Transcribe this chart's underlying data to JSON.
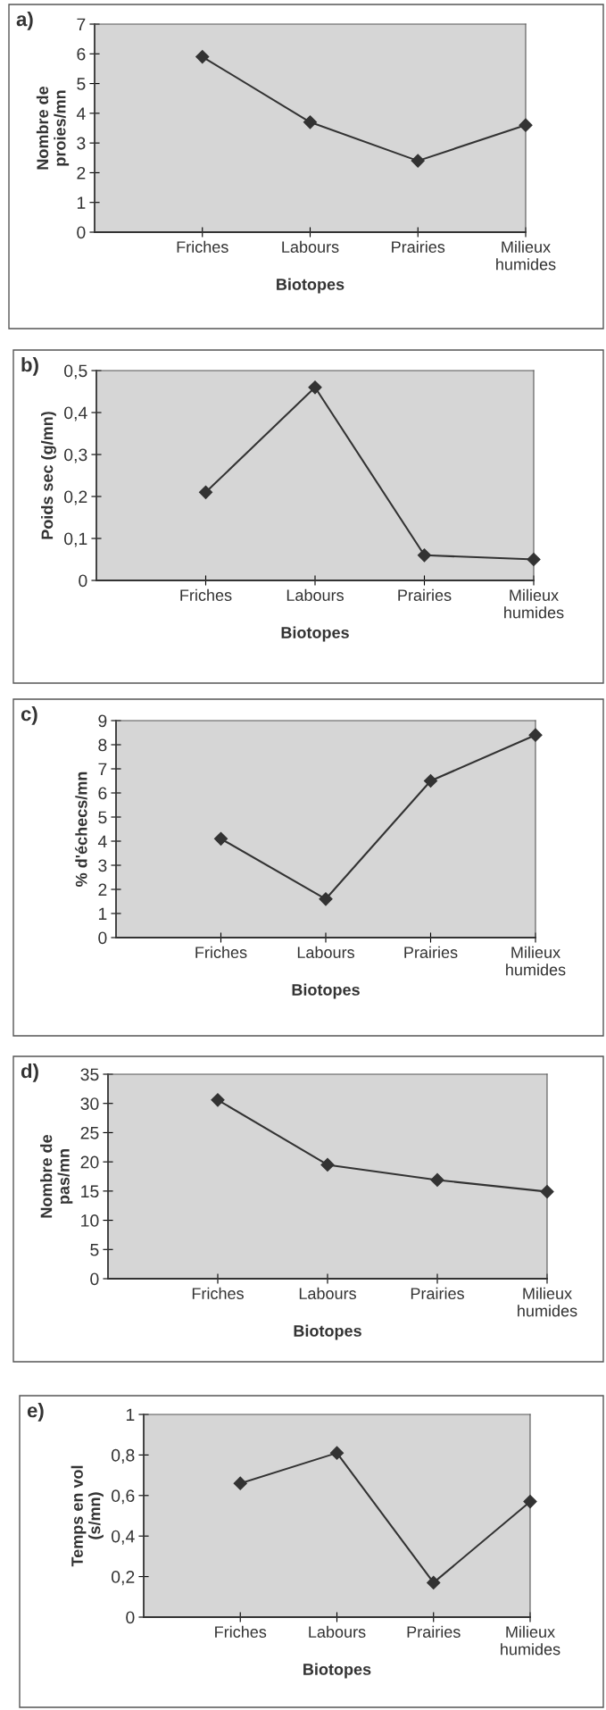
{
  "chart_data": [
    {
      "type": "line",
      "title": "a)",
      "xlabel": "Biotopes",
      "ylabel": "Nombre de\nproies/mn",
      "categories": [
        "Friches",
        "Labours",
        "Prairies",
        "Milieux\nhumides"
      ],
      "series": [
        {
          "color": "#333333",
          "values": [
            5.9,
            3.7,
            2.4,
            3.6
          ]
        }
      ],
      "ylim": [
        0,
        7
      ],
      "yticks": [
        0,
        1,
        2,
        3,
        4,
        5,
        6,
        7
      ],
      "marker": "diamond",
      "line_style": "solid",
      "grid": false,
      "legend": false
    },
    {
      "type": "line",
      "title": "b)",
      "xlabel": "Biotopes",
      "ylabel": "Poids sec (g/mn)",
      "categories": [
        "Friches",
        "Labours",
        "Prairies",
        "Milieux\nhumides"
      ],
      "series": [
        {
          "color": "#333333",
          "values": [
            0.21,
            0.46,
            0.06,
            0.05
          ]
        }
      ],
      "ylim": [
        0,
        0.5
      ],
      "yticks": [
        0,
        {
          "value": 0.1,
          "label": "0,1"
        },
        {
          "value": 0.2,
          "label": "0,2"
        },
        {
          "value": 0.3,
          "label": "0,3"
        },
        {
          "value": 0.4,
          "label": "0,4"
        },
        {
          "value": 0.5,
          "label": "0,5"
        }
      ],
      "marker": "diamond",
      "line_style": "solid",
      "grid": false,
      "legend": false
    },
    {
      "type": "line",
      "title": "c)",
      "xlabel": "Biotopes",
      "ylabel": "% d'échecs/mn",
      "categories": [
        "Friches",
        "Labours",
        "Prairies",
        "Milieux\nhumides"
      ],
      "series": [
        {
          "color": "#333333",
          "values": [
            4.1,
            1.6,
            6.5,
            8.4
          ]
        }
      ],
      "ylim": [
        0,
        9
      ],
      "yticks": [
        0,
        1,
        2,
        3,
        4,
        5,
        6,
        7,
        8,
        9
      ],
      "marker": "diamond",
      "line_style": "solid",
      "grid": false,
      "legend": false
    },
    {
      "type": "line",
      "title": "d)",
      "xlabel": "Biotopes",
      "ylabel": "Nombre de\npas/mn",
      "categories": [
        "Friches",
        "Labours",
        "Prairies",
        "Milieux\nhumides"
      ],
      "series": [
        {
          "color": "#333333",
          "values": [
            30.6,
            19.5,
            16.9,
            14.9
          ]
        }
      ],
      "ylim": [
        0,
        35
      ],
      "yticks": [
        0,
        5,
        10,
        15,
        20,
        25,
        30,
        35
      ],
      "marker": "diamond",
      "line_style": "solid",
      "grid": false,
      "legend": false
    },
    {
      "type": "line",
      "title": "e)",
      "xlabel": "Biotopes",
      "ylabel": "Temps en vol\n(s/mn)",
      "categories": [
        "Friches",
        "Labours",
        "Prairies",
        "Milieux\nhumides"
      ],
      "series": [
        {
          "color": "#333333",
          "values": [
            0.66,
            0.81,
            0.17,
            0.57
          ]
        }
      ],
      "ylim": [
        0,
        1
      ],
      "yticks": [
        0,
        {
          "value": 0.2,
          "label": "0,2"
        },
        {
          "value": 0.4,
          "label": "0,4"
        },
        {
          "value": 0.6,
          "label": "0,6"
        },
        {
          "value": 0.8,
          "label": "0,8"
        },
        1
      ],
      "marker": "diamond",
      "line_style": "solid",
      "grid": false,
      "legend": false
    }
  ]
}
